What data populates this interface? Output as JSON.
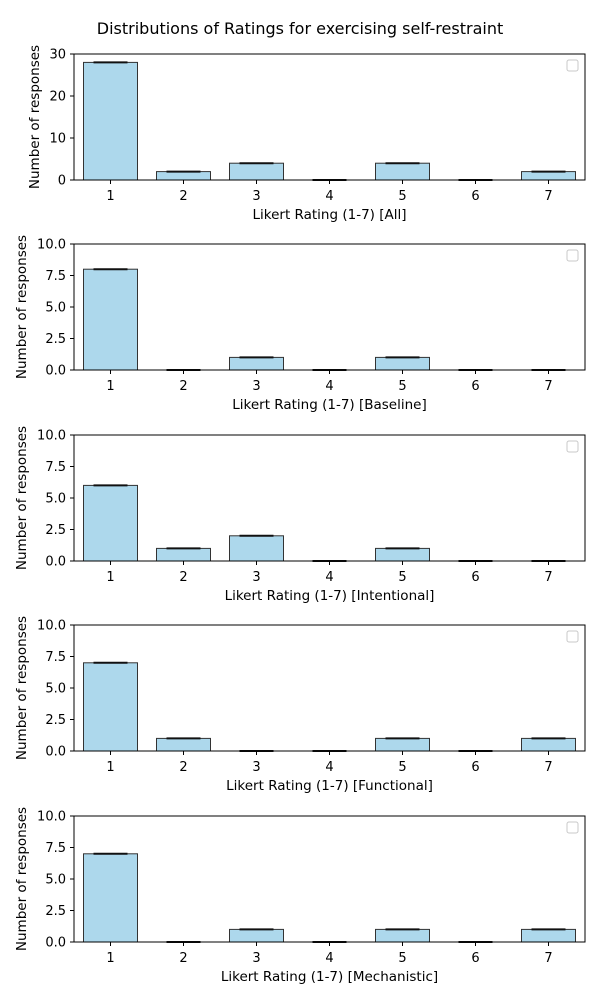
{
  "figure": {
    "title": "Distributions of Ratings for exercising self-restraint"
  },
  "colors": {
    "bar_fill": "#add8ec",
    "bar_edge": "#333333",
    "cap": "#111111"
  },
  "chart_data": [
    {
      "type": "bar",
      "categories": [
        "1",
        "2",
        "3",
        "4",
        "5",
        "6",
        "7"
      ],
      "values": [
        28,
        2,
        4,
        0,
        4,
        0,
        2
      ],
      "xlabel": "Likert Rating (1-7) [All]",
      "ylabel": "Number of responses",
      "ylim": [
        0,
        30
      ],
      "yticks": [
        "0",
        "10",
        "20",
        "30"
      ],
      "ytick_values": [
        0,
        10,
        20,
        30
      ],
      "legend": "top-right (empty)",
      "grid": false
    },
    {
      "type": "bar",
      "categories": [
        "1",
        "2",
        "3",
        "4",
        "5",
        "6",
        "7"
      ],
      "values": [
        8,
        0,
        1,
        0,
        1,
        0,
        0
      ],
      "xlabel": "Likert Rating (1-7) [Baseline]",
      "ylabel": "Number of responses",
      "ylim": [
        0,
        10
      ],
      "yticks": [
        "0.0",
        "2.5",
        "5.0",
        "7.5",
        "10.0"
      ],
      "ytick_values": [
        0,
        2.5,
        5,
        7.5,
        10
      ],
      "legend": "top-right (empty)",
      "grid": false
    },
    {
      "type": "bar",
      "categories": [
        "1",
        "2",
        "3",
        "4",
        "5",
        "6",
        "7"
      ],
      "values": [
        6,
        1,
        2,
        0,
        1,
        0,
        0
      ],
      "xlabel": "Likert Rating (1-7) [Intentional]",
      "ylabel": "Number of responses",
      "ylim": [
        0,
        10
      ],
      "yticks": [
        "0.0",
        "2.5",
        "5.0",
        "7.5",
        "10.0"
      ],
      "ytick_values": [
        0,
        2.5,
        5,
        7.5,
        10
      ],
      "legend": "top-right (empty)",
      "grid": false
    },
    {
      "type": "bar",
      "categories": [
        "1",
        "2",
        "3",
        "4",
        "5",
        "6",
        "7"
      ],
      "values": [
        7,
        1,
        0,
        0,
        1,
        0,
        1
      ],
      "xlabel": "Likert Rating (1-7) [Functional]",
      "ylabel": "Number of responses",
      "ylim": [
        0,
        10
      ],
      "yticks": [
        "0.0",
        "2.5",
        "5.0",
        "7.5",
        "10.0"
      ],
      "ytick_values": [
        0,
        2.5,
        5,
        7.5,
        10
      ],
      "legend": "top-right (empty)",
      "grid": false
    },
    {
      "type": "bar",
      "categories": [
        "1",
        "2",
        "3",
        "4",
        "5",
        "6",
        "7"
      ],
      "values": [
        7,
        0,
        1,
        0,
        1,
        0,
        1
      ],
      "xlabel": "Likert Rating (1-7) [Mechanistic]",
      "ylabel": "Number of responses",
      "ylim": [
        0,
        10
      ],
      "yticks": [
        "0.0",
        "2.5",
        "5.0",
        "7.5",
        "10.0"
      ],
      "ytick_values": [
        0,
        2.5,
        5,
        7.5,
        10
      ],
      "legend": "top-right (empty)",
      "grid": false
    }
  ]
}
